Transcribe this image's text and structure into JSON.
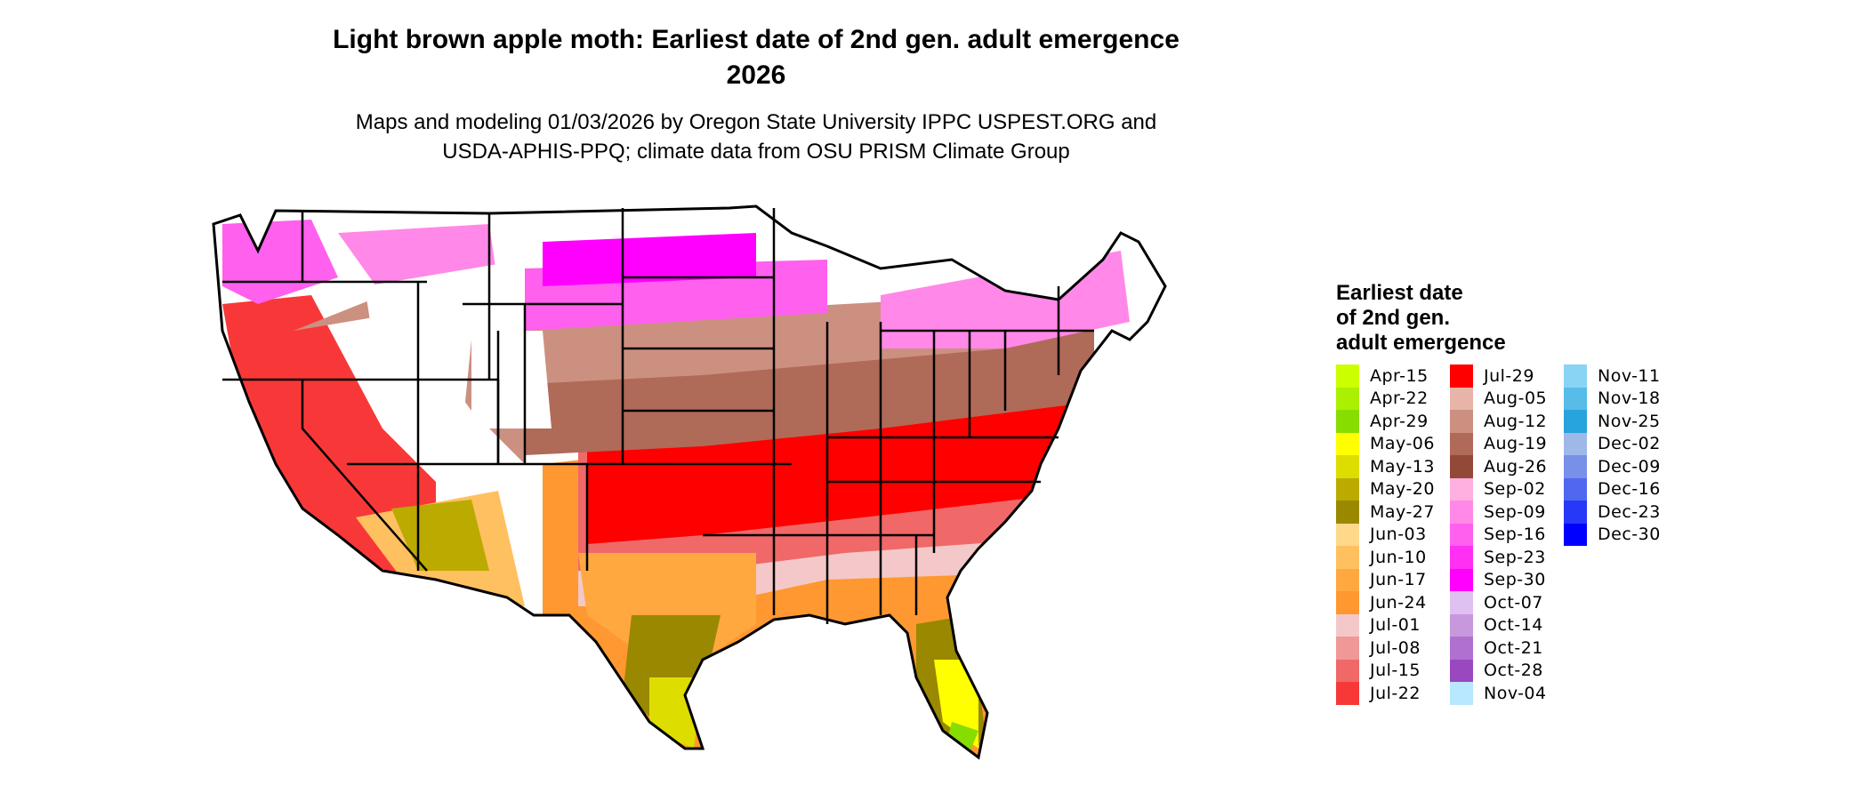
{
  "title_line1": "Light brown apple moth: Earliest date of 2nd gen. adult emergence",
  "title_line2": "2026",
  "subtitle_line1": "Maps and modeling 01/03/2026 by Oregon State University IPPC USPEST.ORG and",
  "subtitle_line2": "USDA-APHIS-PPQ; climate data from OSU PRISM Climate Group",
  "legend": {
    "title_line1": "Earliest date",
    "title_line2": "of 2nd gen.",
    "title_line3": "adult emergence",
    "columns": [
      [
        {
          "label": "Apr-15",
          "color": "#ccff00"
        },
        {
          "label": "Apr-22",
          "color": "#aaf000"
        },
        {
          "label": "Apr-29",
          "color": "#88dd00"
        },
        {
          "label": "May-06",
          "color": "#ffff00"
        },
        {
          "label": "May-13",
          "color": "#dddd00"
        },
        {
          "label": "May-20",
          "color": "#bbaa00"
        },
        {
          "label": "May-27",
          "color": "#998800"
        },
        {
          "label": "Jun-03",
          "color": "#ffd88a"
        },
        {
          "label": "Jun-10",
          "color": "#ffc060"
        },
        {
          "label": "Jun-17",
          "color": "#ffa840"
        },
        {
          "label": "Jun-24",
          "color": "#ff9830"
        },
        {
          "label": "Jul-01",
          "color": "#f4c8c8"
        },
        {
          "label": "Jul-08",
          "color": "#f09898"
        },
        {
          "label": "Jul-15",
          "color": "#f06868"
        },
        {
          "label": "Jul-22",
          "color": "#f83838"
        }
      ],
      [
        {
          "label": "Jul-29",
          "color": "#ff0000"
        },
        {
          "label": "Aug-05",
          "color": "#e8b4a8"
        },
        {
          "label": "Aug-12",
          "color": "#cc9080"
        },
        {
          "label": "Aug-19",
          "color": "#b06a58"
        },
        {
          "label": "Aug-26",
          "color": "#944838"
        },
        {
          "label": "Sep-02",
          "color": "#ffb0e0"
        },
        {
          "label": "Sep-09",
          "color": "#ff88e8"
        },
        {
          "label": "Sep-16",
          "color": "#ff60ee"
        },
        {
          "label": "Sep-23",
          "color": "#ff30f4"
        },
        {
          "label": "Sep-30",
          "color": "#ff00ff"
        },
        {
          "label": "Oct-07",
          "color": "#e0c0f0"
        },
        {
          "label": "Oct-14",
          "color": "#c898dc"
        },
        {
          "label": "Oct-21",
          "color": "#b070d0"
        },
        {
          "label": "Oct-28",
          "color": "#9a48c0"
        },
        {
          "label": "Nov-04",
          "color": "#b8e8ff"
        }
      ],
      [
        {
          "label": "Nov-11",
          "color": "#88d4f4"
        },
        {
          "label": "Nov-18",
          "color": "#58bce8"
        },
        {
          "label": "Nov-25",
          "color": "#28a4dc"
        },
        {
          "label": "Dec-02",
          "color": "#a0b8e8"
        },
        {
          "label": "Dec-09",
          "color": "#7890e8"
        },
        {
          "label": "Dec-16",
          "color": "#5068f0"
        },
        {
          "label": "Dec-23",
          "color": "#2838f8"
        },
        {
          "label": "Dec-30",
          "color": "#0000ff"
        }
      ]
    ]
  }
}
